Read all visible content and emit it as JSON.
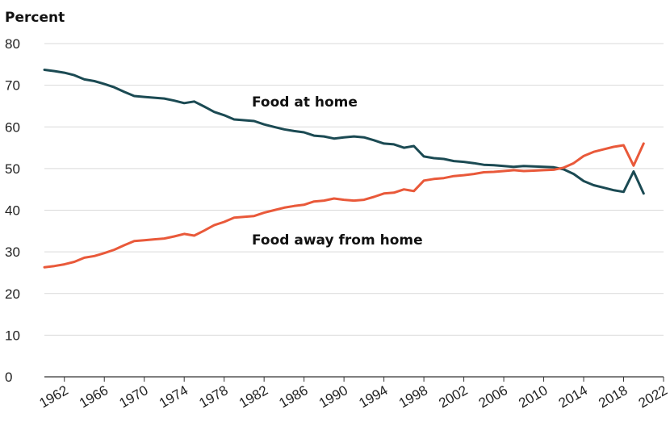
{
  "chart_data": {
    "type": "line",
    "title": "",
    "xlabel": "",
    "ylabel": "Percent",
    "ylim": [
      0,
      80
    ],
    "yticks": [
      0,
      10,
      20,
      30,
      40,
      50,
      60,
      70,
      80
    ],
    "xlim": [
      1960,
      2022
    ],
    "xticks": [
      1962,
      1966,
      1970,
      1974,
      1978,
      1982,
      1986,
      1990,
      1994,
      1998,
      2002,
      2006,
      2010,
      2014,
      2018,
      2022
    ],
    "grid": true,
    "legend": "none",
    "annotations": [
      {
        "text": "Food at home",
        "series": "Food at home"
      },
      {
        "text": "Food away from home",
        "series": "Food away from home"
      }
    ],
    "series": [
      {
        "name": "Food at home",
        "color": "#1b4a53",
        "x": [
          1960,
          1961,
          1962,
          1963,
          1964,
          1965,
          1966,
          1967,
          1968,
          1969,
          1970,
          1971,
          1972,
          1973,
          1974,
          1975,
          1976,
          1977,
          1978,
          1979,
          1980,
          1981,
          1982,
          1983,
          1984,
          1985,
          1986,
          1987,
          1988,
          1989,
          1990,
          1991,
          1992,
          1993,
          1994,
          1995,
          1996,
          1997,
          1998,
          1999,
          2000,
          2001,
          2002,
          2003,
          2004,
          2005,
          2006,
          2007,
          2008,
          2009,
          2010,
          2011,
          2012,
          2013,
          2014,
          2015,
          2016,
          2017,
          2018,
          2019,
          2020
        ],
        "values": [
          73.7,
          73.4,
          73.0,
          72.4,
          71.4,
          71.0,
          70.3,
          69.5,
          68.4,
          67.4,
          67.2,
          67.0,
          66.8,
          66.3,
          65.7,
          66.1,
          64.9,
          63.6,
          62.8,
          61.8,
          61.6,
          61.4,
          60.6,
          60.0,
          59.4,
          59.0,
          58.7,
          57.9,
          57.7,
          57.2,
          57.5,
          57.7,
          57.5,
          56.8,
          56.0,
          55.8,
          55.0,
          55.4,
          52.9,
          52.5,
          52.3,
          51.8,
          51.6,
          51.3,
          50.9,
          50.8,
          50.6,
          50.4,
          50.6,
          50.5,
          50.4,
          50.3,
          49.8,
          48.7,
          47.0,
          46.0,
          45.4,
          44.8,
          44.4,
          49.3,
          44.0
        ]
      },
      {
        "name": "Food away from home",
        "color": "#e9593a",
        "x": [
          1960,
          1961,
          1962,
          1963,
          1964,
          1965,
          1966,
          1967,
          1968,
          1969,
          1970,
          1971,
          1972,
          1973,
          1974,
          1975,
          1976,
          1977,
          1978,
          1979,
          1980,
          1981,
          1982,
          1983,
          1984,
          1985,
          1986,
          1987,
          1988,
          1989,
          1990,
          1991,
          1992,
          1993,
          1994,
          1995,
          1996,
          1997,
          1998,
          1999,
          2000,
          2001,
          2002,
          2003,
          2004,
          2005,
          2006,
          2007,
          2008,
          2009,
          2010,
          2011,
          2012,
          2013,
          2014,
          2015,
          2016,
          2017,
          2018,
          2019,
          2020
        ],
        "values": [
          26.3,
          26.6,
          27.0,
          27.6,
          28.6,
          29.0,
          29.7,
          30.5,
          31.6,
          32.6,
          32.8,
          33.0,
          33.2,
          33.7,
          34.3,
          33.9,
          35.1,
          36.4,
          37.2,
          38.2,
          38.4,
          38.6,
          39.4,
          40.0,
          40.6,
          41.0,
          41.3,
          42.1,
          42.3,
          42.8,
          42.5,
          42.3,
          42.5,
          43.2,
          44.0,
          44.2,
          45.0,
          44.6,
          47.1,
          47.5,
          47.7,
          48.2,
          48.4,
          48.7,
          49.1,
          49.2,
          49.4,
          49.6,
          49.4,
          49.5,
          49.6,
          49.7,
          50.2,
          51.3,
          53.0,
          54.0,
          54.6,
          55.2,
          55.6,
          50.7,
          56.0
        ]
      }
    ]
  }
}
